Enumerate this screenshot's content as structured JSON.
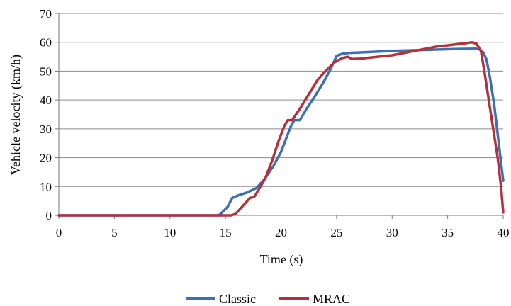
{
  "chart_data": {
    "type": "line",
    "xlabel": "Time (s)",
    "ylabel": "Vehicle velocity (km/h)",
    "xlim": [
      0,
      40
    ],
    "ylim": [
      0,
      70
    ],
    "x_ticks": [
      0,
      5,
      10,
      15,
      20,
      25,
      30,
      35,
      40
    ],
    "y_ticks": [
      0,
      10,
      20,
      30,
      40,
      50,
      60,
      70
    ],
    "grid": "horizontal",
    "legend_position": "bottom",
    "series": [
      {
        "name": "Classic",
        "color": "#3C6FB4",
        "points": [
          [
            0,
            0
          ],
          [
            14.4,
            0
          ],
          [
            14.7,
            1
          ],
          [
            15.2,
            3
          ],
          [
            15.6,
            6
          ],
          [
            16.2,
            7
          ],
          [
            17,
            8
          ],
          [
            17.8,
            9.5
          ],
          [
            18.5,
            12.5
          ],
          [
            19.3,
            17
          ],
          [
            20,
            22
          ],
          [
            20.5,
            27
          ],
          [
            20.9,
            31
          ],
          [
            21.2,
            33
          ],
          [
            21.7,
            33
          ],
          [
            22.3,
            37
          ],
          [
            23,
            41
          ],
          [
            23.8,
            46
          ],
          [
            24.5,
            51
          ],
          [
            25,
            55.3
          ],
          [
            25.5,
            56
          ],
          [
            26,
            56.3
          ],
          [
            30,
            57
          ],
          [
            35,
            57.6
          ],
          [
            37.5,
            57.8
          ],
          [
            37.9,
            57.5
          ],
          [
            38.2,
            56.5
          ],
          [
            38.5,
            54
          ],
          [
            38.8,
            48
          ],
          [
            39.2,
            38
          ],
          [
            39.6,
            25
          ],
          [
            40,
            12
          ]
        ]
      },
      {
        "name": "MRAC",
        "color": "#B5313A",
        "points": [
          [
            0,
            0
          ],
          [
            15.5,
            0
          ],
          [
            15.9,
            0.5
          ],
          [
            16.5,
            3
          ],
          [
            17.2,
            6
          ],
          [
            17.6,
            6.5
          ],
          [
            18,
            9
          ],
          [
            18.6,
            13
          ],
          [
            19.2,
            19
          ],
          [
            19.8,
            26
          ],
          [
            20.3,
            31
          ],
          [
            20.6,
            33
          ],
          [
            21,
            33
          ],
          [
            21.7,
            37
          ],
          [
            22.5,
            42
          ],
          [
            23.3,
            47
          ],
          [
            24,
            50
          ],
          [
            24.8,
            53
          ],
          [
            25.5,
            54.5
          ],
          [
            26,
            55
          ],
          [
            26.4,
            54.2
          ],
          [
            27,
            54.3
          ],
          [
            30,
            55.5
          ],
          [
            34,
            58.5
          ],
          [
            36.5,
            59.6
          ],
          [
            37.2,
            60
          ],
          [
            37.6,
            59.5
          ],
          [
            38,
            57
          ],
          [
            38.3,
            50
          ],
          [
            38.7,
            40
          ],
          [
            39.1,
            30
          ],
          [
            39.5,
            20
          ],
          [
            39.8,
            10
          ],
          [
            40,
            1
          ]
        ]
      }
    ]
  }
}
